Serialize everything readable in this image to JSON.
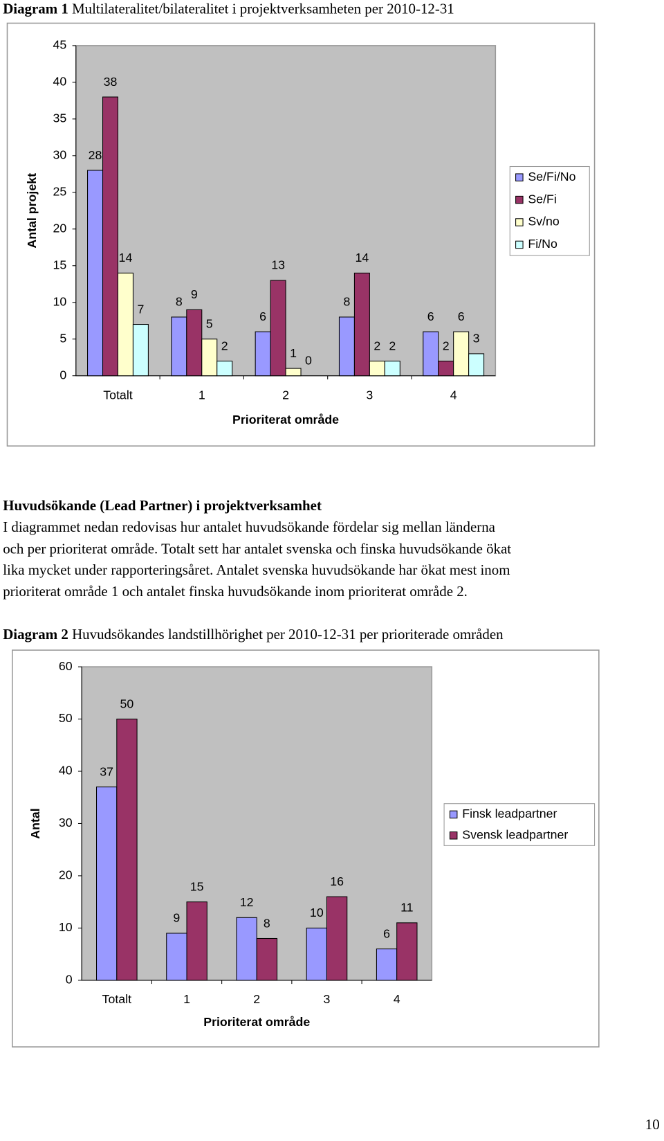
{
  "document": {
    "diagram1_caption": {
      "label": "Diagram 1",
      "text": "Multilateralitet/bilateralitet i projektverksamheten per 2010-12-31"
    },
    "heading": "Huvudsökande (Lead Partner) i projektverksamhet",
    "paragraph_lines": [
      "I diagrammet nedan redovisas hur antalet huvudsökande fördelar sig mellan länderna",
      "och per prioriterat område. Totalt sett har antalet svenska och finska huvudsökande ökat",
      "lika mycket under rapporteringsåret. Antalet svenska huvudsökande har ökat mest inom",
      "prioriterat område 1 och antalet finska huvudsökande inom prioriterat område 2."
    ],
    "diagram2_caption": {
      "label": "Diagram 2",
      "text": "Huvudsökandes landstillhörighet per 2010-12-31 per prioriterade områden"
    },
    "page_number": "10"
  },
  "chart_data": [
    {
      "type": "bar",
      "x_label": "Prioriterat område",
      "y_label": "Antal projekt",
      "categories": [
        "Totalt",
        "1",
        "2",
        "3",
        "4"
      ],
      "series": [
        {
          "name": "Se/Fi/No",
          "color": "#9999ff",
          "values": [
            28,
            8,
            6,
            8,
            6
          ]
        },
        {
          "name": "Se/Fi",
          "color": "#993366",
          "values": [
            38,
            9,
            13,
            14,
            2
          ]
        },
        {
          "name": "Sv/no",
          "color": "#ffffcc",
          "values": [
            14,
            5,
            1,
            2,
            6
          ]
        },
        {
          "name": "Fi/No",
          "color": "#ccffff",
          "values": [
            7,
            2,
            0,
            2,
            3
          ]
        }
      ],
      "ylim": [
        0,
        45
      ],
      "yticks": [
        0,
        5,
        10,
        15,
        20,
        25,
        30,
        35,
        40,
        45
      ],
      "grid": false,
      "legend": "right",
      "plot_background": "#c0c0c0"
    },
    {
      "type": "bar",
      "x_label": "Prioriterat område",
      "y_label": "Antal",
      "categories": [
        "Totalt",
        "1",
        "2",
        "3",
        "4"
      ],
      "series": [
        {
          "name": "Finsk leadpartner",
          "color": "#9999ff",
          "values": [
            37,
            9,
            12,
            10,
            6
          ]
        },
        {
          "name": "Svensk leadpartner",
          "color": "#993366",
          "values": [
            50,
            15,
            8,
            16,
            11
          ]
        }
      ],
      "ylim": [
        0,
        60
      ],
      "yticks": [
        0,
        10,
        20,
        30,
        40,
        50,
        60
      ],
      "grid": false,
      "legend": "right",
      "plot_background": "#c0c0c0"
    }
  ]
}
